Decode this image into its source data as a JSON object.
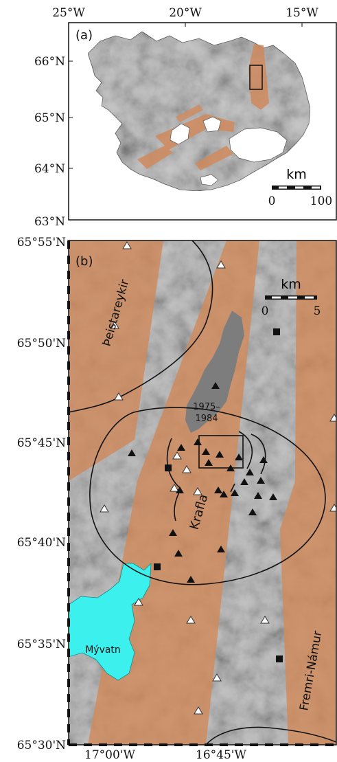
{
  "colors": {
    "rift_zone": "#cf8a5c",
    "terrain": "#c7c7c7",
    "lake": "#3cf0ee",
    "ice": "#ffffff",
    "lava_1975_1984": "#7d7d7d",
    "frame": "#111111"
  },
  "panel_a": {
    "label": "(a)",
    "top_ticks": [
      "25°W",
      "20°W",
      "15°W"
    ],
    "left_ticks": [
      "66°N",
      "65°N",
      "64°N",
      "63°N"
    ],
    "scale_unit": "km",
    "scale_ticks": [
      "0",
      "100"
    ]
  },
  "panel_b": {
    "label": "(b)",
    "left_ticks": [
      "65°55'N",
      "65°50'N",
      "65°45'N",
      "65°40'N",
      "65°35'N",
      "65°30'N"
    ],
    "bottom_ticks": [
      "17°00'W",
      "16°45'W"
    ],
    "scale_unit": "km",
    "scale_ticks": [
      "0",
      "5"
    ],
    "place_names": {
      "theistareykir": "Þeistareykir",
      "krafla": "Krafla",
      "fremri_namur": "Fremri-Námur",
      "myvatn": "Mývatn"
    },
    "eruption_label_years": [
      "1975–",
      "1984"
    ],
    "symbols": {
      "open_triangle": "white-triangle-marker",
      "filled_triangle": "black-triangle-marker",
      "filled_square": "black-square-marker"
    }
  }
}
